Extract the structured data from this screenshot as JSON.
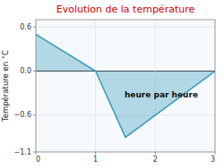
{
  "chart_data": {
    "type": "area",
    "title": "Evolution de la température",
    "xlabel": "heure par heure",
    "ylabel": "Température en °C",
    "x": [
      0,
      1,
      1.5,
      3
    ],
    "values": [
      0.5,
      0,
      -0.9,
      0
    ],
    "color": "#3399bb",
    "xlim": [
      0,
      3
    ],
    "ylim": [
      -1.1,
      0.7
    ],
    "xticks": [
      0,
      1,
      2,
      3
    ],
    "yticks": [
      {
        "value": -1.1,
        "label": "−1.1"
      },
      {
        "value": -0.6,
        "label": "−0.6"
      },
      {
        "value": 0,
        "label": "0.0"
      },
      0.6
    ],
    "grid": true
  }
}
